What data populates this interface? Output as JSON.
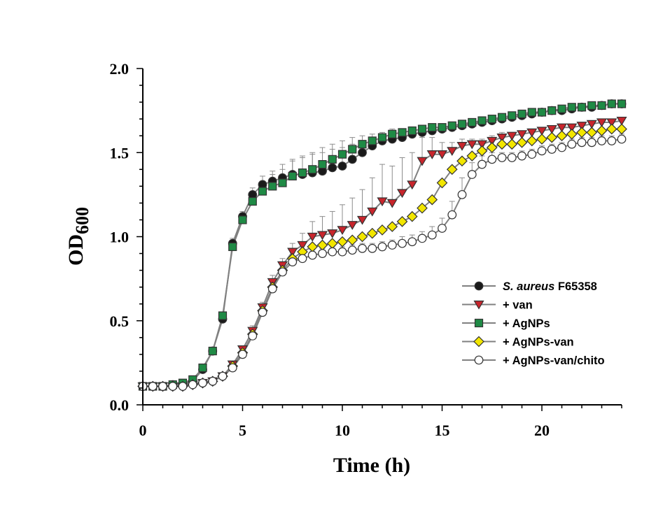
{
  "chart_data": {
    "type": "line",
    "xlabel": "Time (h)",
    "ylabel": {
      "main": "OD",
      "sub": "600"
    },
    "xlim": [
      0,
      24
    ],
    "ylim": [
      0,
      2.0
    ],
    "x_ticks": [
      0,
      5,
      10,
      15,
      20
    ],
    "y_ticks": [
      "0.0",
      "0.5",
      "1.0",
      "1.5",
      "2.0"
    ],
    "grid": false,
    "legend_position": "right",
    "series": [
      {
        "name": "S. aureus F65358",
        "name_parts": [
          {
            "text": "S. aureus",
            "italic": true
          },
          {
            "text": " F65358",
            "italic": false
          }
        ],
        "marker": "circle",
        "color": "#1a1a1a",
        "x": [
          0,
          0.5,
          1,
          1.5,
          2,
          2.5,
          3,
          3.5,
          4,
          4.5,
          5,
          5.5,
          6,
          6.5,
          7,
          7.5,
          8,
          8.5,
          9,
          9.5,
          10,
          10.5,
          11,
          11.5,
          12,
          12.5,
          13,
          13.5,
          14,
          14.5,
          15,
          15.5,
          16,
          16.5,
          17,
          17.5,
          18,
          18.5,
          19,
          19.5,
          20,
          20.5,
          21,
          21.5,
          22,
          22.5,
          23,
          23.5,
          24
        ],
        "y": [
          0.11,
          0.11,
          0.11,
          0.12,
          0.12,
          0.14,
          0.21,
          0.32,
          0.51,
          0.96,
          1.12,
          1.25,
          1.31,
          1.33,
          1.35,
          1.37,
          1.37,
          1.38,
          1.39,
          1.41,
          1.42,
          1.46,
          1.5,
          1.54,
          1.57,
          1.58,
          1.59,
          1.61,
          1.62,
          1.63,
          1.64,
          1.65,
          1.66,
          1.67,
          1.68,
          1.69,
          1.7,
          1.71,
          1.72,
          1.73,
          1.74,
          1.75,
          1.75,
          1.76,
          1.77,
          1.77,
          1.78,
          1.79,
          1.79
        ],
        "err": [
          0.01,
          0.01,
          0.01,
          0.01,
          0.01,
          0.01,
          0.01,
          0.01,
          0.02,
          0.03,
          0.03,
          0.04,
          0.05,
          0.06,
          0.08,
          0.09,
          0.1,
          0.11,
          0.11,
          0.11,
          0.11,
          0.09,
          0.07,
          0.05,
          0.04,
          0.03,
          0.03,
          0.02,
          0.02,
          0.02,
          0.02,
          0.02,
          0.02,
          0.02,
          0.02,
          0.02,
          0.02,
          0.02,
          0.02,
          0.02,
          0.02,
          0.02,
          0.02,
          0.02,
          0.02,
          0.02,
          0.02,
          0.02,
          0.02
        ]
      },
      {
        "name": "+ van",
        "marker": "triangle-down",
        "color": "#c8252c",
        "x": [
          0,
          0.5,
          1,
          1.5,
          2,
          2.5,
          3,
          3.5,
          4,
          4.5,
          5,
          5.5,
          6,
          6.5,
          7,
          7.5,
          8,
          8.5,
          9,
          9.5,
          10,
          10.5,
          11,
          11.5,
          12,
          12.5,
          13,
          13.5,
          14,
          14.5,
          15,
          15.5,
          16,
          16.5,
          17,
          17.5,
          18,
          18.5,
          19,
          19.5,
          20,
          20.5,
          21,
          21.5,
          22,
          22.5,
          23,
          23.5,
          24
        ],
        "y": [
          0.11,
          0.11,
          0.11,
          0.11,
          0.11,
          0.12,
          0.13,
          0.14,
          0.17,
          0.24,
          0.33,
          0.44,
          0.58,
          0.73,
          0.83,
          0.91,
          0.95,
          1.0,
          1.01,
          1.02,
          1.04,
          1.07,
          1.1,
          1.15,
          1.21,
          1.2,
          1.26,
          1.31,
          1.45,
          1.49,
          1.49,
          1.51,
          1.54,
          1.55,
          1.55,
          1.57,
          1.59,
          1.6,
          1.61,
          1.62,
          1.63,
          1.64,
          1.65,
          1.65,
          1.66,
          1.67,
          1.68,
          1.68,
          1.69
        ],
        "err": [
          0.01,
          0.01,
          0.01,
          0.01,
          0.01,
          0.01,
          0.01,
          0.01,
          0.01,
          0.02,
          0.02,
          0.03,
          0.03,
          0.04,
          0.04,
          0.05,
          0.07,
          0.09,
          0.11,
          0.13,
          0.15,
          0.16,
          0.18,
          0.2,
          0.22,
          0.22,
          0.21,
          0.19,
          0.14,
          0.1,
          0.07,
          0.05,
          0.04,
          0.03,
          0.03,
          0.03,
          0.03,
          0.02,
          0.02,
          0.02,
          0.02,
          0.02,
          0.02,
          0.02,
          0.02,
          0.02,
          0.02,
          0.02,
          0.02
        ]
      },
      {
        "name": "+ AgNPs",
        "marker": "square",
        "color": "#1f8a45",
        "x": [
          0,
          0.5,
          1,
          1.5,
          2,
          2.5,
          3,
          3.5,
          4,
          4.5,
          5,
          5.5,
          6,
          6.5,
          7,
          7.5,
          8,
          8.5,
          9,
          9.5,
          10,
          10.5,
          11,
          11.5,
          12,
          12.5,
          13,
          13.5,
          14,
          14.5,
          15,
          15.5,
          16,
          16.5,
          17,
          17.5,
          18,
          18.5,
          19,
          19.5,
          20,
          20.5,
          21,
          21.5,
          22,
          22.5,
          23,
          23.5,
          24
        ],
        "y": [
          0.11,
          0.11,
          0.11,
          0.12,
          0.13,
          0.15,
          0.22,
          0.32,
          0.53,
          0.94,
          1.1,
          1.21,
          1.27,
          1.3,
          1.32,
          1.36,
          1.38,
          1.4,
          1.43,
          1.46,
          1.49,
          1.52,
          1.55,
          1.57,
          1.59,
          1.61,
          1.62,
          1.63,
          1.64,
          1.65,
          1.65,
          1.66,
          1.67,
          1.68,
          1.69,
          1.7,
          1.71,
          1.72,
          1.73,
          1.74,
          1.74,
          1.75,
          1.76,
          1.77,
          1.77,
          1.78,
          1.78,
          1.79,
          1.79
        ],
        "err": [
          0.01,
          0.01,
          0.01,
          0.01,
          0.01,
          0.01,
          0.01,
          0.01,
          0.02,
          0.03,
          0.04,
          0.05,
          0.06,
          0.07,
          0.08,
          0.09,
          0.1,
          0.1,
          0.1,
          0.09,
          0.08,
          0.07,
          0.05,
          0.04,
          0.03,
          0.03,
          0.02,
          0.02,
          0.02,
          0.02,
          0.02,
          0.02,
          0.02,
          0.02,
          0.02,
          0.02,
          0.02,
          0.02,
          0.02,
          0.02,
          0.02,
          0.02,
          0.02,
          0.02,
          0.02,
          0.02,
          0.02,
          0.02,
          0.02
        ]
      },
      {
        "name": "+ AgNPs-van",
        "marker": "diamond",
        "color": "#f2e600",
        "x": [
          0,
          0.5,
          1,
          1.5,
          2,
          2.5,
          3,
          3.5,
          4,
          4.5,
          5,
          5.5,
          6,
          6.5,
          7,
          7.5,
          8,
          8.5,
          9,
          9.5,
          10,
          10.5,
          11,
          11.5,
          12,
          12.5,
          13,
          13.5,
          14,
          14.5,
          15,
          15.5,
          16,
          16.5,
          17,
          17.5,
          18,
          18.5,
          19,
          19.5,
          20,
          20.5,
          21,
          21.5,
          22,
          22.5,
          23,
          23.5,
          24
        ],
        "y": [
          0.11,
          0.11,
          0.11,
          0.11,
          0.11,
          0.12,
          0.13,
          0.14,
          0.17,
          0.23,
          0.31,
          0.42,
          0.56,
          0.7,
          0.8,
          0.87,
          0.91,
          0.94,
          0.95,
          0.96,
          0.97,
          0.98,
          1.0,
          1.02,
          1.04,
          1.06,
          1.09,
          1.12,
          1.17,
          1.22,
          1.32,
          1.4,
          1.45,
          1.48,
          1.51,
          1.53,
          1.55,
          1.55,
          1.56,
          1.57,
          1.58,
          1.59,
          1.6,
          1.61,
          1.62,
          1.62,
          1.63,
          1.64,
          1.64
        ]
      },
      {
        "name": "+ AgNPs-van/chito",
        "marker": "circle-open",
        "color": "#ffffff",
        "x": [
          0,
          0.5,
          1,
          1.5,
          2,
          2.5,
          3,
          3.5,
          4,
          4.5,
          5,
          5.5,
          6,
          6.5,
          7,
          7.5,
          8,
          8.5,
          9,
          9.5,
          10,
          10.5,
          11,
          11.5,
          12,
          12.5,
          13,
          13.5,
          14,
          14.5,
          15,
          15.5,
          16,
          16.5,
          17,
          17.5,
          18,
          18.5,
          19,
          19.5,
          20,
          20.5,
          21,
          21.5,
          22,
          22.5,
          23,
          23.5,
          24
        ],
        "y": [
          0.11,
          0.11,
          0.11,
          0.11,
          0.11,
          0.12,
          0.13,
          0.14,
          0.17,
          0.22,
          0.3,
          0.41,
          0.55,
          0.69,
          0.79,
          0.85,
          0.87,
          0.89,
          0.9,
          0.91,
          0.91,
          0.92,
          0.93,
          0.93,
          0.94,
          0.95,
          0.96,
          0.97,
          0.99,
          1.01,
          1.05,
          1.13,
          1.25,
          1.37,
          1.43,
          1.46,
          1.47,
          1.47,
          1.48,
          1.49,
          1.51,
          1.52,
          1.53,
          1.55,
          1.56,
          1.56,
          1.57,
          1.57,
          1.58
        ],
        "err": [
          0.01,
          0.01,
          0.01,
          0.01,
          0.01,
          0.01,
          0.01,
          0.01,
          0.01,
          0.02,
          0.02,
          0.02,
          0.03,
          0.03,
          0.03,
          0.03,
          0.03,
          0.03,
          0.03,
          0.03,
          0.03,
          0.03,
          0.03,
          0.03,
          0.03,
          0.03,
          0.04,
          0.04,
          0.04,
          0.05,
          0.06,
          0.08,
          0.1,
          0.07,
          0.05,
          0.04,
          0.03,
          0.03,
          0.03,
          0.03,
          0.03,
          0.03,
          0.03,
          0.03,
          0.03,
          0.03,
          0.03,
          0.03,
          0.03
        ]
      }
    ]
  }
}
